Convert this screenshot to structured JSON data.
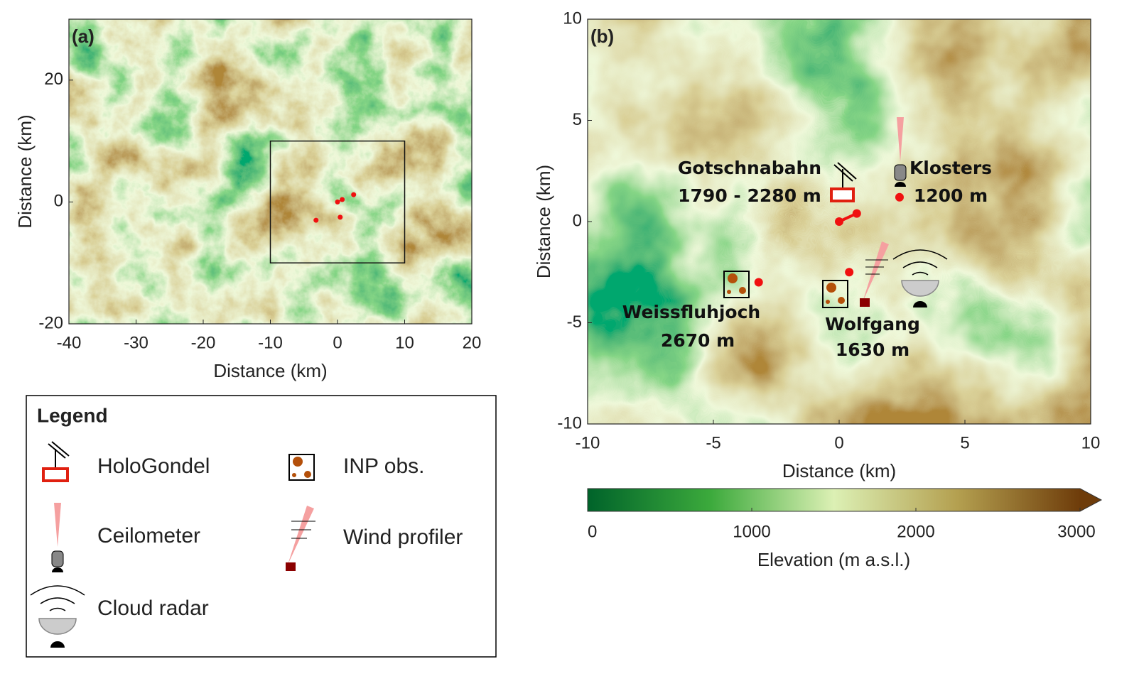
{
  "panel_a": {
    "label": "(a)",
    "xlabel": "Distance (km)",
    "ylabel": "Distance (km)",
    "xlim": [
      -40,
      20
    ],
    "ylim": [
      -20,
      30
    ],
    "xticks": [
      -40,
      -30,
      -20,
      -10,
      0,
      10,
      20
    ],
    "yticks": [
      -20,
      0,
      20
    ],
    "inset_box": {
      "x": [
        -10,
        10
      ],
      "y": [
        -10,
        10
      ]
    }
  },
  "panel_b": {
    "label": "(b)",
    "xlabel": "Distance (km)",
    "ylabel": "Distance (km)",
    "xlim": [
      -10,
      10
    ],
    "ylim": [
      -10,
      10
    ],
    "xticks": [
      -10,
      -5,
      0,
      5,
      10
    ],
    "yticks": [
      -10,
      -5,
      0,
      5,
      10
    ]
  },
  "sites": [
    {
      "name": "Gotschnabahn",
      "elevation": "1790 - 2280 m",
      "x": [
        0,
        0.7
      ],
      "y": [
        0,
        0.4
      ]
    },
    {
      "name": "Klosters",
      "elevation": "1200 m",
      "x": [
        2.4
      ],
      "y": [
        1.2
      ]
    },
    {
      "name": "Wolfgang",
      "elevation": "1630 m",
      "x": [
        0.4
      ],
      "y": [
        -2.5
      ]
    },
    {
      "name": "Weissfluhjoch",
      "elevation": "2670 m",
      "x": [
        -3.2
      ],
      "y": [
        -3
      ]
    }
  ],
  "colorbar": {
    "label": "Elevation (m a.s.l.)",
    "lim": [
      0,
      3000
    ],
    "ticks": [
      0,
      1000,
      2000,
      3000
    ]
  },
  "legend": {
    "title": "Legend",
    "items": [
      "HoloGondel",
      "INP obs.",
      "Ceilometer",
      "Wind profiler",
      "Cloud radar"
    ]
  }
}
